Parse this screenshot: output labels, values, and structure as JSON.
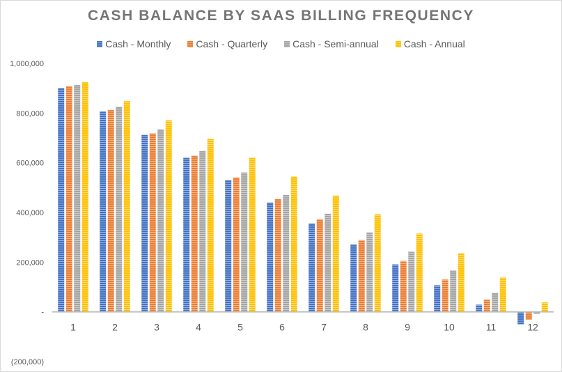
{
  "chart_data": {
    "type": "bar",
    "title": "CASH BALANCE BY SAAS BILLING FREQUENCY",
    "xlabel": "",
    "ylabel": "",
    "categories": [
      "1",
      "2",
      "3",
      "4",
      "5",
      "6",
      "7",
      "8",
      "9",
      "10",
      "11",
      "12"
    ],
    "ylim": [
      -200000,
      1000000
    ],
    "yticks": [
      -200000,
      0,
      200000,
      400000,
      600000,
      800000,
      1000000
    ],
    "ytick_labels": [
      "(200,000)",
      "-",
      "200,000",
      "400,000",
      "600,000",
      "800,000",
      "1,000,000"
    ],
    "grid": false,
    "legend_position": "top",
    "series": [
      {
        "name": "Cash - Monthly",
        "color": "#4472C4",
        "values": [
          901000,
          806000,
          712000,
          620000,
          530000,
          440000,
          356000,
          272000,
          191000,
          107000,
          29000,
          -51000
        ]
      },
      {
        "name": "Cash - Quarterly",
        "color": "#ED7D31",
        "values": [
          907000,
          812000,
          718000,
          628000,
          541000,
          454000,
          373000,
          289000,
          205000,
          130000,
          49000,
          -31000
        ]
      },
      {
        "name": "Cash - Semi-annual",
        "color": "#A5A5A5",
        "values": [
          913000,
          826000,
          735000,
          648000,
          561000,
          471000,
          395000,
          320000,
          242000,
          166000,
          77000,
          -9000
        ]
      },
      {
        "name": "Cash - Annual",
        "color": "#FFC000",
        "values": [
          924000,
          848000,
          771000,
          696000,
          620000,
          544000,
          468000,
          393000,
          315000,
          236000,
          138000,
          38000
        ]
      }
    ]
  }
}
